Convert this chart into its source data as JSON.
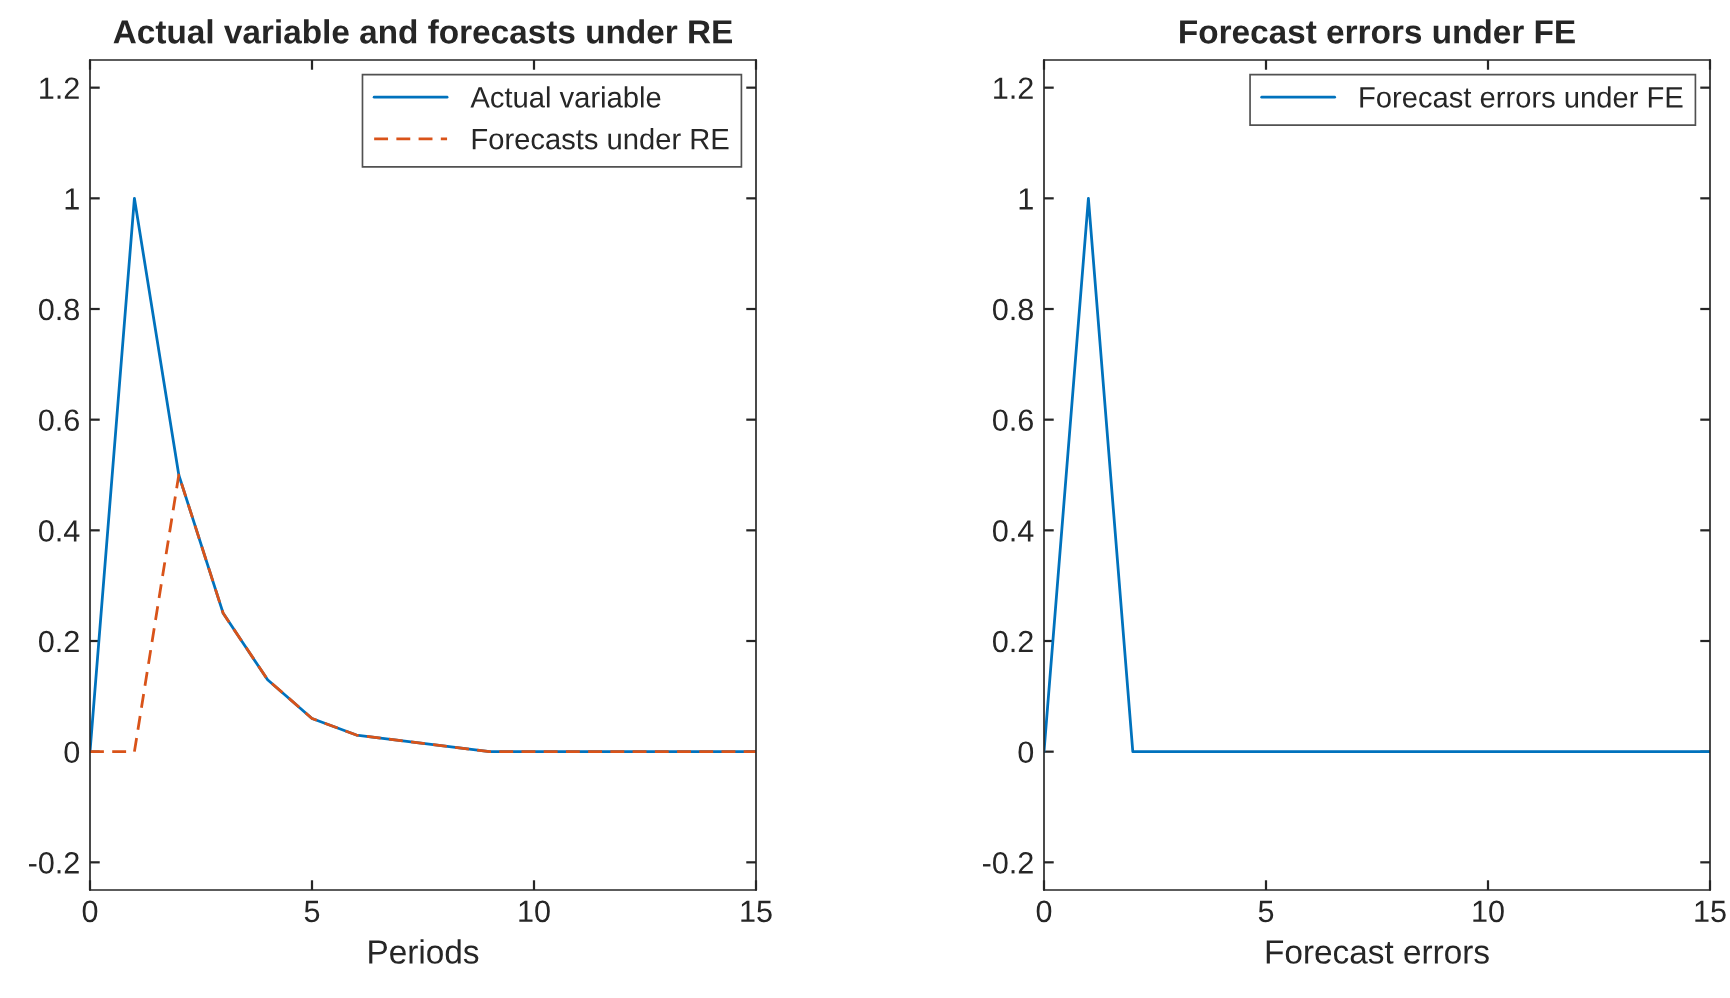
{
  "chart_data": [
    {
      "type": "line",
      "title": "Actual variable and forecasts under RE",
      "xlabel": "Periods",
      "x": [
        0,
        1,
        2,
        3,
        4,
        5,
        6,
        7,
        8,
        9,
        10,
        11,
        12,
        13,
        14,
        15
      ],
      "series": [
        {
          "name": "Actual variable",
          "color": "#0072bd",
          "line_style": "solid",
          "values": [
            0,
            1,
            0.5,
            0.25,
            0.13,
            0.06,
            0.03,
            0.02,
            0.01,
            0,
            0,
            0,
            0,
            0,
            0,
            0
          ]
        },
        {
          "name": "Forecasts under RE",
          "color": "#d95319",
          "line_style": "dashed",
          "values": [
            0,
            0,
            0.5,
            0.25,
            0.13,
            0.06,
            0.03,
            0.02,
            0.01,
            0,
            0,
            0,
            0,
            0,
            0,
            0
          ]
        }
      ],
      "xlim": [
        0,
        15
      ],
      "xticks": [
        0,
        5,
        10,
        15
      ],
      "ylim": [
        -0.25,
        1.25
      ],
      "yticks": [
        {
          "value": -0.2,
          "label": "-0.2"
        },
        0,
        0.2,
        0.4,
        0.6,
        0.8,
        1,
        1.2
      ],
      "legend": "top right",
      "grid": false
    },
    {
      "type": "line",
      "title": "Forecast errors under FE",
      "xlabel": "Forecast errors",
      "x": [
        0,
        1,
        2,
        3,
        4,
        5,
        6,
        7,
        8,
        9,
        10,
        11,
        12,
        13,
        14,
        15
      ],
      "series": [
        {
          "name": "Forecast errors under FE",
          "color": "#0072bd",
          "line_style": "solid",
          "values": [
            0,
            1,
            0,
            0,
            0,
            0,
            0,
            0,
            0,
            0,
            0,
            0,
            0,
            0,
            0,
            0
          ]
        }
      ],
      "xlim": [
        0,
        15
      ],
      "xticks": [
        0,
        5,
        10,
        15
      ],
      "ylim": [
        -0.25,
        1.25
      ],
      "yticks": [
        {
          "value": -0.2,
          "label": "-0.2"
        },
        0,
        0.2,
        0.4,
        0.6,
        0.8,
        1,
        1.2
      ],
      "legend": "top right",
      "grid": false
    }
  ]
}
